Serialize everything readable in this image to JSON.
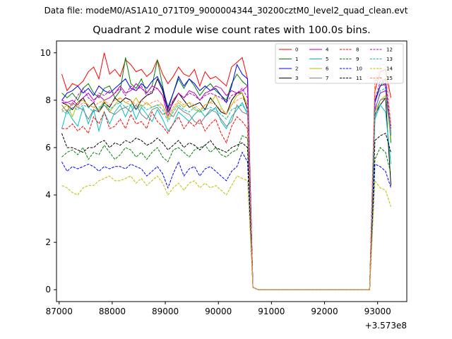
{
  "figure": {
    "suptitle": "Data file: modeM0/AS1A10_071T09_9000004344_30200cztM0_level2_quad_clean.evt"
  },
  "chart_data": {
    "type": "line",
    "title": "Quadrant 2 module wise count rates with 100.0s bins.",
    "xlabel": "",
    "ylabel": "",
    "x_offset_label": "+3.573e8",
    "xlim": [
      86950,
      93550
    ],
    "ylim": [
      -0.5,
      10.5
    ],
    "xticks": [
      87000,
      88000,
      89000,
      90000,
      91000,
      92000,
      93000
    ],
    "yticks": [
      0,
      2,
      4,
      6,
      8,
      10
    ],
    "grid": false,
    "legend": {
      "location": "upper right",
      "ncol": 4
    },
    "x": [
      87050,
      87150,
      87250,
      87350,
      87450,
      87550,
      87650,
      87750,
      87850,
      87950,
      88050,
      88150,
      88250,
      88350,
      88450,
      88550,
      88650,
      88750,
      88850,
      88950,
      89050,
      89150,
      89250,
      89350,
      89450,
      89550,
      89650,
      89750,
      89850,
      89950,
      90050,
      90150,
      90250,
      90350,
      90450,
      90550,
      90650,
      90750,
      90850,
      90950,
      91050,
      91150,
      91250,
      91350,
      91450,
      91550,
      91650,
      91750,
      91850,
      91950,
      92050,
      92150,
      92250,
      92350,
      92450,
      92550,
      92650,
      92750,
      92850,
      92950,
      93050,
      93150,
      93250
    ],
    "series": [
      {
        "name": "0",
        "color": "#ff0000",
        "dash": "solid",
        "values": [
          9.1,
          8.4,
          8.7,
          8.6,
          8.8,
          9.2,
          9.4,
          8.9,
          10.0,
          9.1,
          9.3,
          9.0,
          9.7,
          9.5,
          9.2,
          9.3,
          9.0,
          9.2,
          9.7,
          9.1,
          8.7,
          9.0,
          9.4,
          9.1,
          9.0,
          9.3,
          8.6,
          9.2,
          8.9,
          9.0,
          8.8,
          8.6,
          9.4,
          9.6,
          9.8,
          8.9,
          0.1,
          0,
          0,
          0,
          0,
          0,
          0,
          0,
          0,
          0,
          0,
          0,
          0,
          0,
          0,
          0,
          0,
          0,
          0,
          0,
          0,
          0,
          0,
          8.4,
          9.2,
          9.3,
          8.1
        ]
      },
      {
        "name": "1",
        "color": "#008000",
        "dash": "solid",
        "values": [
          8.3,
          8.1,
          8.3,
          8.0,
          8.5,
          8.7,
          8.3,
          8.1,
          8.5,
          8.6,
          8.1,
          8.4,
          9.8,
          8.7,
          8.5,
          8.9,
          8.3,
          8.6,
          9.7,
          8.6,
          7.6,
          8.3,
          8.9,
          8.5,
          8.9,
          8.6,
          8.2,
          8.5,
          8.7,
          8.4,
          8.2,
          8.0,
          8.7,
          9.1,
          8.8,
          8.6,
          0.1,
          0,
          0,
          0,
          0,
          0,
          0,
          0,
          0,
          0,
          0,
          0,
          0,
          0,
          0,
          0,
          0,
          0,
          0,
          0,
          0,
          0,
          0,
          8.0,
          8.6,
          8.9,
          6.2
        ]
      },
      {
        "name": "2",
        "color": "#0000ff",
        "dash": "solid",
        "values": [
          8.0,
          8.3,
          8.4,
          8.6,
          8.3,
          8.5,
          8.2,
          8.6,
          8.4,
          8.3,
          8.5,
          8.7,
          8.9,
          8.5,
          8.4,
          8.7,
          8.5,
          8.8,
          9.0,
          8.5,
          7.7,
          8.3,
          9.0,
          8.6,
          8.9,
          8.7,
          8.4,
          8.6,
          8.4,
          8.5,
          8.2,
          7.9,
          8.6,
          9.5,
          9.1,
          8.9,
          0.1,
          0,
          0,
          0,
          0,
          0,
          0,
          0,
          0,
          0,
          0,
          0,
          0,
          0,
          0,
          0,
          0,
          0,
          0,
          0,
          0,
          0,
          0,
          7.9,
          8.6,
          8.7,
          6.5
        ]
      },
      {
        "name": "3",
        "color": "#000000",
        "dash": "solid",
        "values": [
          7.9,
          7.8,
          7.6,
          7.9,
          8.1,
          7.7,
          7.9,
          7.5,
          7.9,
          7.7,
          8.1,
          7.9,
          8.1,
          8.0,
          7.6,
          8.0,
          8.2,
          8.3,
          8.9,
          8.4,
          7.5,
          7.9,
          8.3,
          8.0,
          7.7,
          7.8,
          7.9,
          7.6,
          8.1,
          7.8,
          7.5,
          7.4,
          8.0,
          8.3,
          8.3,
          7.6,
          0.1,
          0,
          0,
          0,
          0,
          0,
          0,
          0,
          0,
          0,
          0,
          0,
          0,
          0,
          0,
          0,
          0,
          0,
          0,
          0,
          0,
          0,
          0,
          7.4,
          7.8,
          8.1,
          4.4
        ]
      },
      {
        "name": "4",
        "color": "#bf00bf",
        "dash": "solid",
        "values": [
          7.9,
          7.9,
          8.0,
          7.8,
          8.1,
          8.3,
          8.0,
          8.2,
          8.0,
          8.1,
          8.3,
          8.6,
          8.3,
          8.4,
          8.7,
          8.5,
          8.3,
          8.6,
          8.5,
          8.2,
          7.3,
          8.0,
          8.3,
          8.1,
          8.4,
          8.3,
          8.0,
          8.3,
          8.4,
          8.6,
          8.5,
          8.2,
          8.4,
          8.3,
          8.4,
          8.6,
          0.1,
          0,
          0,
          0,
          0,
          0,
          0,
          0,
          0,
          0,
          0,
          0,
          0,
          0,
          0,
          0,
          0,
          0,
          0,
          0,
          0,
          0,
          0,
          7.6,
          8.3,
          8.4,
          6.6
        ]
      },
      {
        "name": "5",
        "color": "#00bfbf",
        "dash": "solid",
        "values": [
          6.8,
          7.6,
          7.2,
          6.9,
          7.7,
          7.0,
          7.6,
          6.7,
          7.5,
          7.0,
          7.5,
          7.8,
          7.3,
          7.8,
          7.2,
          7.7,
          7.4,
          7.1,
          7.6,
          7.2,
          6.7,
          7.0,
          7.5,
          7.3,
          7.1,
          7.4,
          7.6,
          7.3,
          7.5,
          7.7,
          7.1,
          6.8,
          7.3,
          7.6,
          7.9,
          7.4,
          0.1,
          0,
          0,
          0,
          0,
          0,
          0,
          0,
          0,
          0,
          0,
          0,
          0,
          0,
          0,
          0,
          0,
          0,
          0,
          0,
          0,
          0,
          0,
          7.2,
          7.8,
          7.5,
          5.3
        ]
      },
      {
        "name": "6",
        "color": "#bfbf00",
        "dash": "solid",
        "values": [
          7.6,
          7.8,
          7.3,
          7.9,
          8.0,
          7.8,
          7.7,
          7.6,
          8.0,
          7.5,
          7.8,
          8.1,
          7.9,
          7.8,
          8.1,
          7.7,
          7.9,
          7.7,
          7.8,
          7.8,
          7.2,
          7.6,
          7.9,
          7.7,
          7.9,
          7.6,
          7.5,
          7.8,
          7.9,
          8.2,
          7.7,
          7.4,
          7.8,
          8.2,
          8.3,
          7.8,
          0.1,
          0,
          0,
          0,
          0,
          0,
          0,
          0,
          0,
          0,
          0,
          0,
          0,
          0,
          0,
          0,
          0,
          0,
          0,
          0,
          0,
          0,
          0,
          7.5,
          8.0,
          8.2,
          6.4
        ]
      },
      {
        "name": "7",
        "color": "#808080",
        "dash": "solid",
        "values": [
          7.8,
          7.5,
          7.9,
          7.7,
          7.6,
          7.2,
          7.6,
          7.5,
          7.8,
          7.5,
          7.4,
          7.6,
          7.7,
          7.5,
          7.8,
          7.4,
          7.2,
          7.6,
          7.7,
          7.4,
          7.5,
          7.3,
          7.7,
          7.5,
          7.4,
          7.1,
          7.0,
          7.3,
          7.6,
          7.5,
          7.2,
          6.9,
          7.1,
          7.8,
          7.5,
          7.4,
          0.1,
          0,
          0,
          0,
          0,
          0,
          0,
          0,
          0,
          0,
          0,
          0,
          0,
          0,
          0,
          0,
          0,
          0,
          0,
          0,
          0,
          0,
          0,
          7.3,
          8.0,
          8.1,
          6.7
        ]
      },
      {
        "name": "8",
        "color": "#ff0000",
        "dash": "dashed",
        "values": [
          6.8,
          6.8,
          7.0,
          6.7,
          6.9,
          6.6,
          7.3,
          7.0,
          7.5,
          6.8,
          6.9,
          7.2,
          6.8,
          7.4,
          7.0,
          7.1,
          6.8,
          7.5,
          7.1,
          6.9,
          6.6,
          7.0,
          7.3,
          6.8,
          7.1,
          6.9,
          7.2,
          6.7,
          7.0,
          7.2,
          6.6,
          6.2,
          6.9,
          7.3,
          7.1,
          6.8,
          0.1,
          0,
          0,
          0,
          0,
          0,
          0,
          0,
          0,
          0,
          0,
          0,
          0,
          0,
          0,
          0,
          0,
          0,
          0,
          0,
          0,
          0,
          0,
          8.8,
          9.0,
          8.5,
          6.9
        ]
      },
      {
        "name": "9",
        "color": "#008000",
        "dash": "dashed",
        "values": [
          5.6,
          5.8,
          5.9,
          5.7,
          6.0,
          5.5,
          5.8,
          5.7,
          6.1,
          5.8,
          5.5,
          5.7,
          6.0,
          5.9,
          5.6,
          5.8,
          5.5,
          5.8,
          6.0,
          5.6,
          5.4,
          5.9,
          6.0,
          5.8,
          5.6,
          5.9,
          6.0,
          6.1,
          5.8,
          6.0,
          5.7,
          5.6,
          5.8,
          5.9,
          6.5,
          6.4,
          0.1,
          0,
          0,
          0,
          0,
          0,
          0,
          0,
          0,
          0,
          0,
          0,
          0,
          0,
          0,
          0,
          0,
          0,
          0,
          0,
          0,
          0,
          0,
          5.5,
          6.0,
          5.8,
          4.9
        ]
      },
      {
        "name": "10",
        "color": "#0000ff",
        "dash": "dashed",
        "values": [
          5.4,
          5.0,
          5.2,
          5.1,
          5.2,
          5.3,
          5.2,
          5.0,
          5.2,
          5.1,
          5.2,
          5.2,
          5.1,
          5.3,
          5.2,
          5.1,
          4.8,
          5.0,
          5.2,
          4.9,
          4.3,
          4.9,
          5.4,
          4.8,
          5.1,
          5.2,
          4.8,
          5.1,
          5.2,
          5.0,
          4.8,
          4.6,
          5.0,
          5.2,
          5.8,
          5.4,
          0.1,
          0,
          0,
          0,
          0,
          0,
          0,
          0,
          0,
          0,
          0,
          0,
          0,
          0,
          0,
          0,
          0,
          0,
          0,
          0,
          0,
          0,
          0,
          5.3,
          5.2,
          5.0,
          4.3
        ]
      },
      {
        "name": "11",
        "color": "#000000",
        "dash": "dashed",
        "values": [
          6.6,
          6.0,
          6.0,
          5.9,
          5.8,
          6.0,
          6.0,
          6.2,
          6.3,
          6.0,
          6.2,
          6.1,
          6.3,
          6.2,
          6.4,
          6.3,
          6.1,
          6.2,
          6.4,
          6.2,
          5.9,
          6.1,
          6.3,
          6.0,
          6.2,
          6.1,
          5.9,
          6.1,
          6.3,
          6.0,
          5.9,
          5.8,
          6.0,
          6.1,
          6.2,
          6.0,
          0.1,
          0,
          0,
          0,
          0,
          0,
          0,
          0,
          0,
          0,
          0,
          0,
          0,
          0,
          0,
          0,
          0,
          0,
          0,
          0,
          0,
          0,
          0,
          6.3,
          6.5,
          6.6,
          5.8
        ]
      },
      {
        "name": "12",
        "color": "#bf00bf",
        "dash": "dashed",
        "values": [
          8.0,
          7.9,
          7.8,
          8.2,
          8.5,
          8.1,
          7.9,
          8.3,
          8.2,
          8.4,
          8.3,
          8.5,
          8.2,
          8.6,
          8.4,
          8.6,
          8.2,
          8.4,
          8.5,
          8.2,
          7.6,
          8.0,
          8.3,
          8.1,
          8.3,
          8.2,
          8.0,
          8.2,
          8.3,
          8.2,
          8.1,
          7.9,
          8.2,
          8.3,
          8.5,
          8.1,
          0.1,
          0,
          0,
          0,
          0,
          0,
          0,
          0,
          0,
          0,
          0,
          0,
          0,
          0,
          0,
          0,
          0,
          0,
          0,
          0,
          0,
          0,
          0,
          8.0,
          8.8,
          8.9,
          6.8
        ]
      },
      {
        "name": "13",
        "color": "#00bfbf",
        "dash": "dashed",
        "values": [
          7.6,
          7.4,
          7.7,
          7.6,
          7.8,
          7.7,
          7.5,
          7.7,
          7.8,
          7.6,
          7.8,
          7.9,
          7.7,
          7.8,
          7.6,
          7.8,
          7.6,
          7.7,
          7.8,
          7.6,
          7.1,
          7.5,
          7.8,
          7.6,
          7.5,
          7.7,
          7.5,
          7.6,
          7.7,
          7.6,
          7.4,
          7.2,
          7.6,
          7.7,
          7.8,
          7.5,
          0.1,
          0,
          0,
          0,
          0,
          0,
          0,
          0,
          0,
          0,
          0,
          0,
          0,
          0,
          0,
          0,
          0,
          0,
          0,
          0,
          0,
          0,
          0,
          7.5,
          8.4,
          8.5,
          6.5
        ]
      },
      {
        "name": "14",
        "color": "#bfbf00",
        "dash": "dashed",
        "values": [
          4.4,
          4.3,
          4.1,
          4.0,
          4.3,
          4.4,
          4.4,
          4.6,
          4.7,
          4.8,
          4.6,
          4.6,
          4.7,
          4.8,
          4.5,
          4.7,
          4.4,
          4.6,
          4.8,
          4.5,
          4.0,
          4.3,
          4.5,
          4.2,
          4.5,
          4.6,
          4.3,
          4.5,
          4.3,
          4.4,
          4.2,
          4.0,
          4.4,
          4.8,
          4.7,
          4.6,
          0.1,
          0,
          0,
          0,
          0,
          0,
          0,
          0,
          0,
          0,
          0,
          0,
          0,
          0,
          0,
          0,
          0,
          0,
          0,
          0,
          0,
          0,
          0,
          4.6,
          4.3,
          4.2,
          3.5
        ]
      },
      {
        "name": "15",
        "color": "#ff8c4d",
        "dash": "dashed",
        "values": [
          7.5,
          7.6,
          7.8,
          7.7,
          7.9,
          7.8,
          7.7,
          7.9,
          8.0,
          7.8,
          8.0,
          8.1,
          7.9,
          8.0,
          7.8,
          8.0,
          7.8,
          7.9,
          8.0,
          7.8,
          7.3,
          7.7,
          8.0,
          7.8,
          7.9,
          7.8,
          7.6,
          7.8,
          7.9,
          7.8,
          7.6,
          7.4,
          7.8,
          8.0,
          8.1,
          7.8,
          0.1,
          0,
          0,
          0,
          0,
          0,
          0,
          0,
          0,
          0,
          0,
          0,
          0,
          0,
          0,
          0,
          0,
          0,
          0,
          0,
          0,
          0,
          0,
          8.8,
          9.5,
          9.5,
          7.0
        ]
      }
    ]
  }
}
